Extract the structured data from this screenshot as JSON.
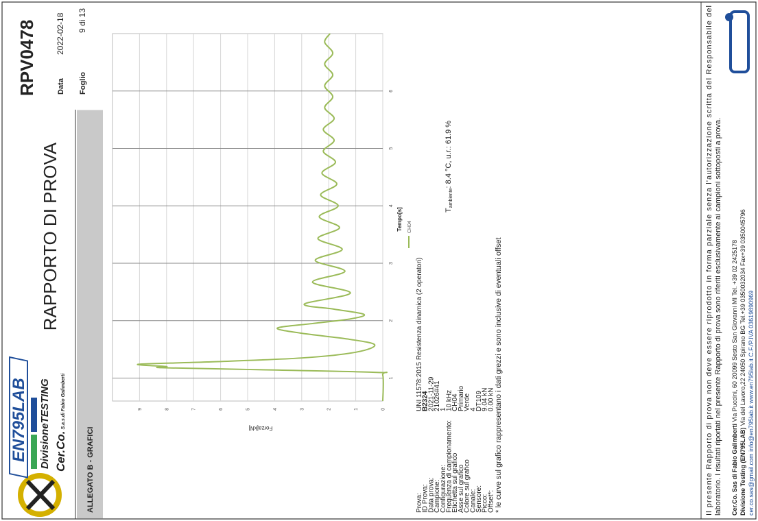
{
  "header": {
    "title": "RAPPORTO DI PROVA",
    "report_id": "RPV0478",
    "date_label": "Data",
    "date": "2022-02-18",
    "sheet_label": "Foglio",
    "sheet": "9 di 13",
    "logo": {
      "brand": "EN795LAB",
      "division_a": "Divisione",
      "division_b": "TESTING",
      "company_a": "Cer.Co.",
      "company_b": "S.a.s.di Fabio Galimberti"
    }
  },
  "section_title": "ALLEGATO B - GRAFICI",
  "chart_data": {
    "type": "line",
    "xlabel": "Tempo[s]",
    "ylabel": "Forza[kN]",
    "x": [
      0.6,
      1.05,
      1.1,
      1.15,
      1.18,
      1.2,
      1.24,
      1.28,
      1.35,
      1.45,
      1.58,
      1.68,
      1.78,
      1.87,
      1.95,
      2.03,
      2.11,
      2.2,
      2.29,
      2.48,
      2.67,
      2.86,
      3.05,
      3.24,
      3.43,
      3.62,
      3.81,
      4.0,
      4.19,
      4.38,
      4.57,
      4.76,
      4.95,
      5.14,
      5.33,
      5.52,
      5.71,
      5.9,
      6.09,
      6.28,
      6.47,
      6.66,
      6.85,
      7.0
    ],
    "series": [
      {
        "name": "CH04",
        "color": "#9bbb59",
        "values": [
          0,
          0,
          0.3,
          5,
          8.2,
          8.0,
          9.04,
          6.5,
          3,
          1,
          0.3,
          1.3,
          3,
          3.9,
          2.6,
          1.2,
          0.7,
          1.8,
          2.9,
          1.2,
          2.6,
          1.4,
          2.5,
          1.5,
          2.4,
          1.6,
          2.35,
          1.65,
          2.3,
          1.7,
          2.25,
          1.75,
          2.2,
          1.8,
          2.2,
          1.8,
          2.15,
          1.85,
          2.15,
          1.85,
          2.15,
          1.85,
          2.15,
          1.95
        ]
      }
    ],
    "xlim": [
      0.6,
      7.0
    ],
    "xticks": [
      1,
      2,
      3,
      4,
      5,
      6
    ],
    "ylim": [
      0,
      10
    ],
    "yticks": [
      0,
      1,
      2,
      3,
      4,
      5,
      6,
      7,
      8,
      9
    ],
    "grid": true
  },
  "test_info": {
    "rows": [
      [
        "Prova:",
        "UNI 11578:2015 Resistenza dinamica (2 operatori)"
      ],
      [
        "ID Prova:",
        "B2324"
      ],
      [
        "Data prova:",
        "2021-11-29"
      ],
      [
        "Campione:",
        "21026#41"
      ],
      [
        "Configurazione:",
        "1"
      ],
      [
        "Frequenza di campionamento:",
        "10 kHz"
      ],
      [
        "Etichetta sul grafico",
        "CH04"
      ],
      [
        "Asse sul grafico",
        "Primario"
      ],
      [
        "Colore sul grafico",
        "Verde"
      ],
      [
        "Canale:",
        "4"
      ],
      [
        "Sensore:",
        "DT109"
      ],
      [
        "Picco:",
        "9.04 kN"
      ],
      [
        "Offset*:",
        "0.00 kN"
      ]
    ],
    "ambient": {
      "symbol": "T",
      "subscript": "ambiente",
      "rest": ": 8.4 °C, u.r.: 61.9 %"
    }
  },
  "note": "* le curve sul grafico rappresentano i dati grezzi e sono inclusive di eventuali offset",
  "footer": {
    "disclaimer": [
      "Il presente Rapporto di prova non deve essere riprodotto in forma parziale senza l'autorizzazione scritta del Responsabile del",
      "laboratorio. I risultati riportati nel presente Rapporto di prova sono riferiti esclusivamente ai campioni sottoposti a prova."
    ],
    "lines": [
      [
        "Cer.Co. Sas di Fabio Galimberti",
        "Via Puccini, 60 20099 Sesto San Giovanni MI Tel. +39 02 2425178"
      ],
      [
        "Divisione Testing (EN795LAB)",
        "Via del Lavoro,22 24050 Spirano BG Tel.+39 0350032034 Fax+39 0350045796"
      ],
      [
        "",
        "cer.co.sas@gmail.com    info@en795lab.it    www.en795lab.it    C.F./P.IVA 03619890969"
      ]
    ]
  }
}
